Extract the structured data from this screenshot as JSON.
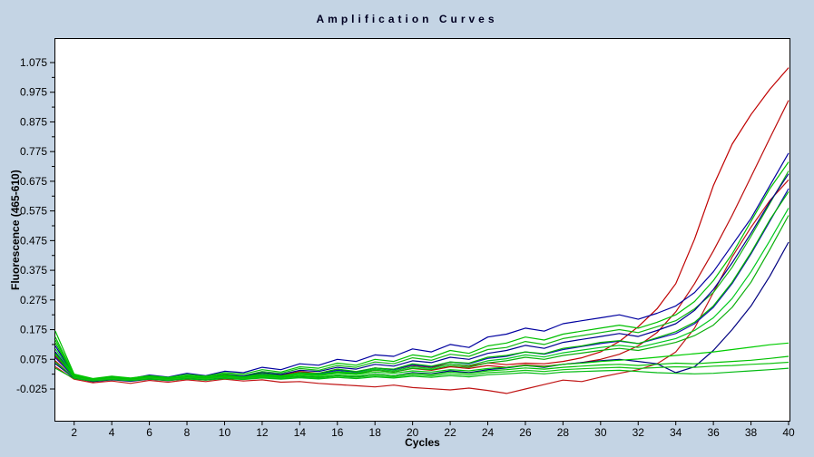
{
  "title": "Amplification Curves",
  "chart_data": {
    "type": "line",
    "title": "Amplification Curves",
    "xlabel": "Cycles",
    "ylabel": "Fluorescence (465-610)",
    "xlim": [
      1,
      40
    ],
    "ylim": [
      -0.13,
      1.15
    ],
    "grid": false,
    "legend": "none",
    "x_ticks": [
      2,
      4,
      6,
      8,
      10,
      12,
      14,
      16,
      18,
      20,
      22,
      24,
      26,
      28,
      30,
      32,
      34,
      36,
      38,
      40
    ],
    "y_ticks": [
      1.075,
      0.975,
      0.875,
      0.775,
      0.675,
      0.575,
      0.475,
      0.375,
      0.275,
      0.175,
      0.075,
      -0.025
    ],
    "y_minor_step": 0.05,
    "x_start": 1,
    "x_step": 1,
    "plot_background": "#ffffff",
    "page_background": "#c4d4e4",
    "series_colors": {
      "red": "#c00000",
      "green": "#00c000",
      "blue": "#0000a0"
    },
    "series": [
      {
        "name": "curve-red-1",
        "color": "#c00000",
        "values": [
          0.085,
          0.015,
          0.003,
          0.01,
          0.004,
          0.014,
          0.008,
          0.018,
          0.012,
          0.024,
          0.018,
          0.03,
          0.022,
          0.034,
          0.028,
          0.042,
          0.032,
          0.046,
          0.04,
          0.054,
          0.048,
          0.06,
          0.052,
          0.063,
          0.057,
          0.062,
          0.06,
          0.068,
          0.08,
          0.1,
          0.135,
          0.185,
          0.245,
          0.33,
          0.48,
          0.66,
          0.8,
          0.9,
          0.985,
          1.058
        ]
      },
      {
        "name": "curve-red-2",
        "color": "#bb0a0a",
        "values": [
          0.07,
          0.012,
          0.0,
          0.008,
          0.002,
          0.01,
          0.005,
          0.014,
          0.01,
          0.02,
          0.014,
          0.024,
          0.018,
          0.028,
          0.022,
          0.034,
          0.026,
          0.038,
          0.032,
          0.044,
          0.038,
          0.05,
          0.044,
          0.054,
          0.048,
          0.056,
          0.052,
          0.058,
          0.064,
          0.075,
          0.092,
          0.12,
          0.165,
          0.235,
          0.33,
          0.44,
          0.56,
          0.69,
          0.82,
          0.948
        ]
      },
      {
        "name": "curve-red-3",
        "color": "#c01414",
        "values": [
          0.05,
          0.008,
          -0.004,
          0.002,
          -0.006,
          0.004,
          -0.002,
          0.006,
          0.0,
          0.008,
          0.002,
          0.006,
          -0.002,
          0.0,
          -0.006,
          -0.01,
          -0.014,
          -0.018,
          -0.012,
          -0.02,
          -0.024,
          -0.028,
          -0.022,
          -0.03,
          -0.04,
          -0.025,
          -0.01,
          0.005,
          0.0,
          0.015,
          0.028,
          0.04,
          0.06,
          0.1,
          0.18,
          0.3,
          0.42,
          0.52,
          0.61,
          0.68
        ]
      },
      {
        "name": "curve-blue-1",
        "color": "#0000a0",
        "values": [
          0.12,
          0.02,
          0.008,
          0.015,
          0.01,
          0.022,
          0.015,
          0.028,
          0.02,
          0.035,
          0.03,
          0.048,
          0.04,
          0.06,
          0.055,
          0.075,
          0.068,
          0.09,
          0.085,
          0.11,
          0.1,
          0.125,
          0.115,
          0.15,
          0.16,
          0.18,
          0.17,
          0.195,
          0.205,
          0.215,
          0.225,
          0.21,
          0.23,
          0.255,
          0.3,
          0.37,
          0.46,
          0.55,
          0.66,
          0.77
        ]
      },
      {
        "name": "curve-green-1",
        "color": "#00c000",
        "values": [
          0.17,
          0.025,
          0.01,
          0.018,
          0.012,
          0.02,
          0.014,
          0.024,
          0.018,
          0.03,
          0.025,
          0.04,
          0.032,
          0.05,
          0.045,
          0.062,
          0.055,
          0.075,
          0.068,
          0.09,
          0.082,
          0.105,
          0.095,
          0.12,
          0.13,
          0.15,
          0.14,
          0.16,
          0.17,
          0.18,
          0.19,
          0.18,
          0.2,
          0.225,
          0.27,
          0.34,
          0.43,
          0.54,
          0.65,
          0.74
        ]
      },
      {
        "name": "curve-green-2",
        "color": "#10b810",
        "values": [
          0.15,
          0.022,
          0.006,
          0.014,
          0.008,
          0.018,
          0.01,
          0.02,
          0.015,
          0.026,
          0.02,
          0.034,
          0.028,
          0.044,
          0.038,
          0.054,
          0.048,
          0.066,
          0.06,
          0.08,
          0.072,
          0.092,
          0.085,
          0.108,
          0.115,
          0.135,
          0.125,
          0.145,
          0.155,
          0.165,
          0.175,
          0.165,
          0.185,
          0.205,
          0.245,
          0.3,
          0.385,
          0.49,
          0.6,
          0.71
        ]
      },
      {
        "name": "curve-blue-2",
        "color": "#000090",
        "values": [
          0.1,
          0.018,
          0.005,
          0.012,
          0.006,
          0.016,
          0.008,
          0.018,
          0.012,
          0.022,
          0.018,
          0.03,
          0.024,
          0.038,
          0.034,
          0.048,
          0.042,
          0.058,
          0.052,
          0.07,
          0.064,
          0.082,
          0.075,
          0.095,
          0.105,
          0.122,
          0.112,
          0.132,
          0.142,
          0.152,
          0.162,
          0.152,
          0.172,
          0.195,
          0.24,
          0.31,
          0.4,
          0.5,
          0.605,
          0.7
        ]
      },
      {
        "name": "curve-blue-3",
        "color": "#1414b4",
        "values": [
          0.08,
          0.015,
          0.002,
          0.01,
          0.004,
          0.012,
          0.006,
          0.015,
          0.01,
          0.018,
          0.014,
          0.024,
          0.018,
          0.03,
          0.026,
          0.038,
          0.032,
          0.046,
          0.04,
          0.056,
          0.05,
          0.066,
          0.06,
          0.078,
          0.085,
          0.1,
          0.092,
          0.108,
          0.118,
          0.128,
          0.136,
          0.128,
          0.145,
          0.162,
          0.195,
          0.25,
          0.33,
          0.43,
          0.54,
          0.65
        ]
      },
      {
        "name": "curve-green-3",
        "color": "#00b400",
        "values": [
          0.13,
          0.02,
          0.004,
          0.014,
          0.006,
          0.016,
          0.008,
          0.014,
          0.011,
          0.022,
          0.015,
          0.028,
          0.02,
          0.03,
          0.028,
          0.042,
          0.034,
          0.046,
          0.042,
          0.06,
          0.052,
          0.066,
          0.062,
          0.082,
          0.088,
          0.1,
          0.094,
          0.112,
          0.12,
          0.132,
          0.138,
          0.128,
          0.148,
          0.168,
          0.2,
          0.255,
          0.335,
          0.435,
          0.545,
          0.64
        ]
      },
      {
        "name": "curve-green-4",
        "color": "#00c81e",
        "values": [
          0.11,
          0.018,
          0.003,
          0.01,
          0.005,
          0.012,
          0.006,
          0.014,
          0.009,
          0.018,
          0.013,
          0.022,
          0.017,
          0.028,
          0.024,
          0.034,
          0.029,
          0.042,
          0.036,
          0.05,
          0.044,
          0.06,
          0.054,
          0.07,
          0.077,
          0.09,
          0.083,
          0.097,
          0.106,
          0.115,
          0.122,
          0.115,
          0.13,
          0.145,
          0.172,
          0.215,
          0.28,
          0.37,
          0.475,
          0.585
        ]
      },
      {
        "name": "curve-green-5",
        "color": "#0aae0a",
        "values": [
          0.09,
          0.016,
          0.002,
          0.008,
          0.003,
          0.01,
          0.005,
          0.012,
          0.008,
          0.016,
          0.011,
          0.02,
          0.015,
          0.025,
          0.021,
          0.031,
          0.026,
          0.038,
          0.032,
          0.045,
          0.04,
          0.054,
          0.048,
          0.063,
          0.07,
          0.082,
          0.075,
          0.088,
          0.096,
          0.105,
          0.112,
          0.105,
          0.118,
          0.132,
          0.155,
          0.19,
          0.25,
          0.335,
          0.445,
          0.56
        ]
      },
      {
        "name": "curve-blue-4",
        "color": "#000080",
        "values": [
          0.06,
          0.012,
          0.0,
          0.006,
          0.001,
          0.008,
          0.003,
          0.01,
          0.005,
          0.012,
          0.008,
          0.015,
          0.01,
          0.018,
          0.014,
          0.022,
          0.016,
          0.026,
          0.02,
          0.03,
          0.026,
          0.036,
          0.03,
          0.04,
          0.046,
          0.054,
          0.048,
          0.058,
          0.064,
          0.07,
          0.075,
          0.068,
          0.06,
          0.03,
          0.05,
          0.105,
          0.175,
          0.255,
          0.355,
          0.47
        ]
      },
      {
        "name": "curve-green-6",
        "color": "#00cc00",
        "values": [
          0.14,
          0.022,
          0.008,
          0.014,
          0.01,
          0.016,
          0.012,
          0.018,
          0.014,
          0.02,
          0.016,
          0.022,
          0.018,
          0.024,
          0.02,
          0.028,
          0.024,
          0.032,
          0.028,
          0.036,
          0.032,
          0.04,
          0.036,
          0.044,
          0.048,
          0.054,
          0.05,
          0.058,
          0.062,
          0.068,
          0.072,
          0.076,
          0.082,
          0.088,
          0.094,
          0.1,
          0.108,
          0.116,
          0.124,
          0.13
        ]
      },
      {
        "name": "curve-green-7",
        "color": "#00c000",
        "values": [
          0.095,
          0.018,
          0.006,
          0.012,
          0.008,
          0.014,
          0.01,
          0.015,
          0.011,
          0.016,
          0.012,
          0.018,
          0.014,
          0.02,
          0.016,
          0.022,
          0.018,
          0.025,
          0.02,
          0.028,
          0.024,
          0.032,
          0.028,
          0.036,
          0.04,
          0.046,
          0.042,
          0.048,
          0.052,
          0.056,
          0.058,
          0.054,
          0.058,
          0.062,
          0.06,
          0.064,
          0.068,
          0.072,
          0.078,
          0.085
        ]
      },
      {
        "name": "curve-green-8",
        "color": "#12c312",
        "values": [
          0.065,
          0.014,
          0.004,
          0.01,
          0.005,
          0.012,
          0.007,
          0.013,
          0.009,
          0.014,
          0.01,
          0.015,
          0.011,
          0.016,
          0.012,
          0.018,
          0.014,
          0.02,
          0.016,
          0.023,
          0.019,
          0.026,
          0.022,
          0.03,
          0.033,
          0.038,
          0.034,
          0.04,
          0.043,
          0.046,
          0.048,
          0.044,
          0.047,
          0.05,
          0.048,
          0.052,
          0.054,
          0.058,
          0.061,
          0.065
        ]
      },
      {
        "name": "curve-green-9",
        "color": "#00ba10",
        "values": [
          0.045,
          0.01,
          0.002,
          0.007,
          0.003,
          0.008,
          0.004,
          0.009,
          0.005,
          0.01,
          0.007,
          0.012,
          0.008,
          0.013,
          0.009,
          0.014,
          0.01,
          0.016,
          0.012,
          0.018,
          0.014,
          0.02,
          0.016,
          0.023,
          0.026,
          0.03,
          0.026,
          0.032,
          0.034,
          0.036,
          0.038,
          0.034,
          0.03,
          0.028,
          0.026,
          0.028,
          0.032,
          0.036,
          0.04,
          0.045
        ]
      }
    ]
  }
}
